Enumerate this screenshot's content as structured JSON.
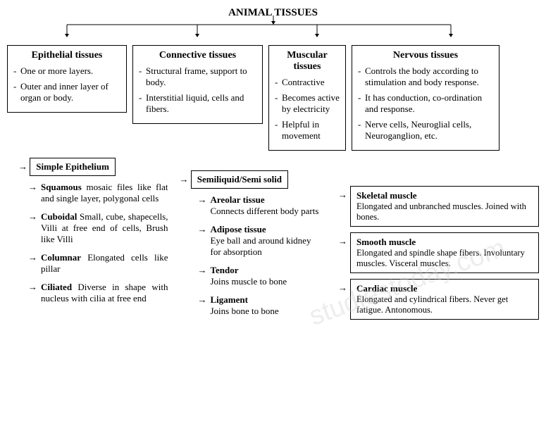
{
  "title": "ANIMAL   TISSUES",
  "main": [
    {
      "title": "Epithelial tissues",
      "items": [
        "One or more layers.",
        "Outer and inner layer of organ or body."
      ]
    },
    {
      "title": "Connective tissues",
      "items": [
        "Structural frame, support to body.",
        "Interstitial liquid, cells and fibers."
      ]
    },
    {
      "title": "Muscular tissues",
      "items": [
        "Contractive",
        "Becomes active by electricity",
        "Helpful in movement"
      ]
    },
    {
      "title": "Nervous tissues",
      "items": [
        "Controls the body according to stimulation and body response.",
        "It has conduction, co-ordination and response.",
        "Nerve cells, Neuroglial cells, Neuroganglion, etc."
      ]
    }
  ],
  "col1": {
    "header": "Simple Epithelium",
    "items": [
      {
        "bold": "Squamous",
        "rest": " mosaic files like flat and single layer, polygonal cells"
      },
      {
        "bold": "Cuboidal",
        "rest": " Small, cube, shapecells, Villi at free end of cells, Brush like Villi"
      },
      {
        "bold": "Columnar",
        "rest": " Elongated cells like pillar"
      },
      {
        "bold": "Ciliated",
        "rest": " Diverse in shape with nucleus with cilia at free end"
      }
    ]
  },
  "col2": {
    "header": "Semiliquid/Semi solid",
    "items": [
      {
        "bold": "Areolar tissue",
        "desc": "Connects different body parts"
      },
      {
        "bold": "Adipose tissue",
        "desc": "Eye ball and around kidney\nfor absorption"
      },
      {
        "bold": "Tendor",
        "desc": "Joins muscle to bone"
      },
      {
        "bold": "Ligament",
        "desc": "Joins bone to bone"
      }
    ]
  },
  "col3": {
    "items": [
      {
        "title": "Skeletal muscle",
        "desc": "Elongated and unbranched muscles. Joined with bones."
      },
      {
        "title": "Smooth muscle",
        "desc": "Elongated and spindle shape fibers. Involuntary muscles. Visceral muscles."
      },
      {
        "title": "Cardiac muscle",
        "desc": "Elongated and cylindrical fibers. Never get fatigue. Antonomous."
      }
    ]
  },
  "watermark": "studiestoday.com"
}
